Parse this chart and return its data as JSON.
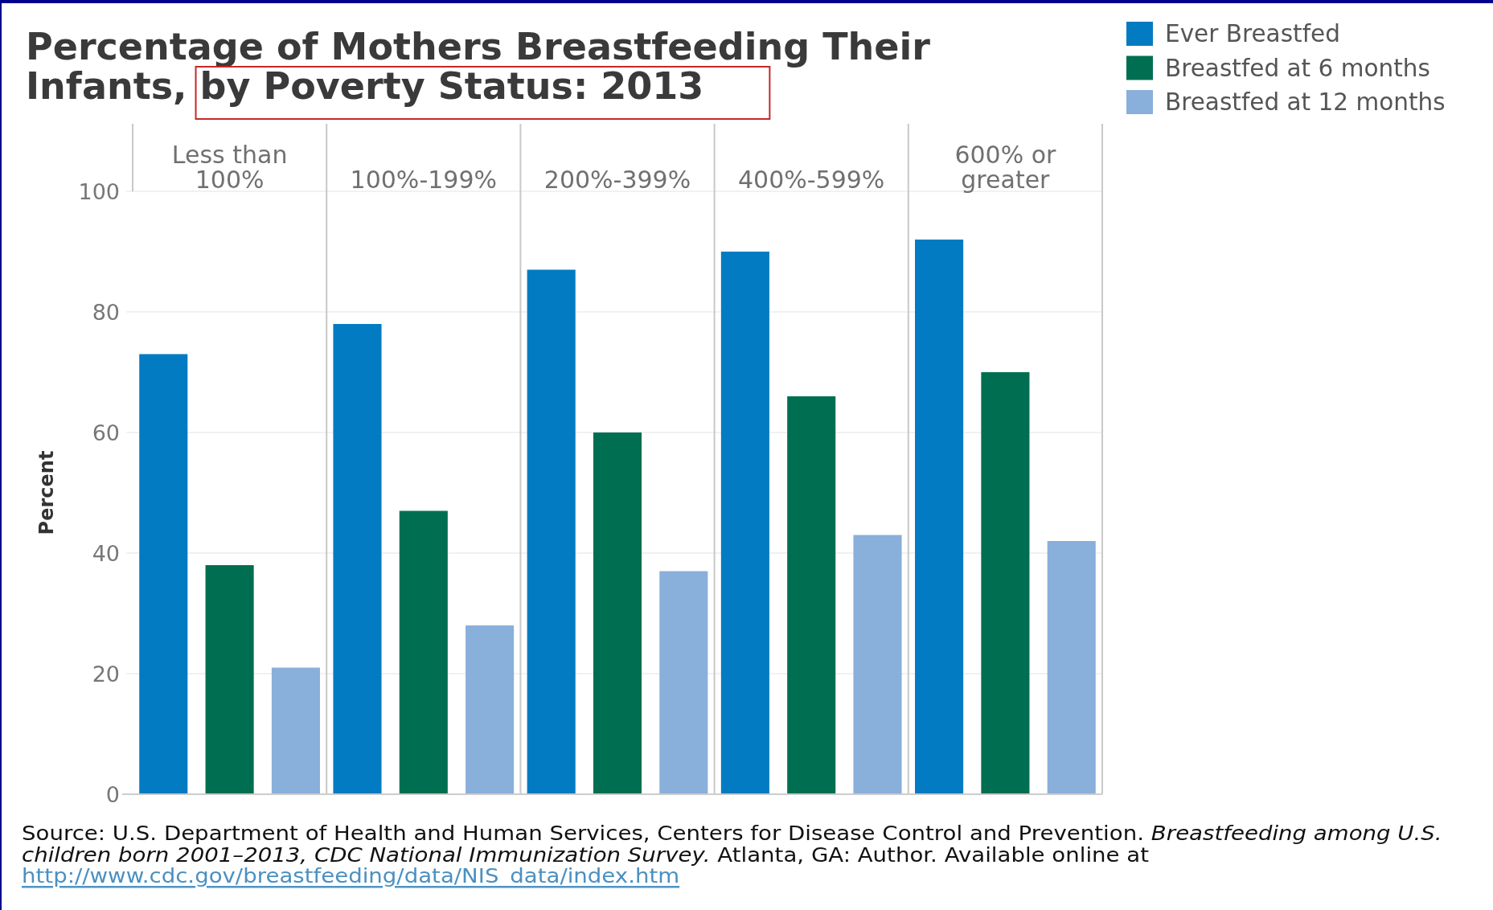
{
  "chart_data": {
    "type": "bar",
    "title": "Percentage of Mothers Breastfeeding Their Infants, by Poverty Status: 2013",
    "ylabel": "Percent",
    "categories": [
      "Less than 100%",
      "100%-199%",
      "200%-399%",
      "400%-599%",
      "600% or greater"
    ],
    "series": [
      {
        "name": "Ever Breastfed",
        "color": "#027bc2",
        "values": [
          73,
          78,
          87,
          90,
          92
        ]
      },
      {
        "name": "Breastfed at 6 months",
        "color": "#006f51",
        "values": [
          38,
          47,
          60,
          66,
          70
        ]
      },
      {
        "name": "Breastfed at 12 months",
        "color": "#89afdb",
        "values": [
          21,
          28,
          37,
          43,
          42
        ]
      }
    ],
    "ylim": [
      0,
      100
    ],
    "yticks": [
      0,
      20,
      40,
      60,
      80,
      100
    ],
    "grid": "y",
    "legend": "top right",
    "annotations": [
      "Source: U.S. Department of Health and Human Services, Centers for Disease Control and Prevention.",
      "Breastfeeding among U.S.",
      "children born 2001–2013, CDC National Immunization Survey.",
      "Atlanta, GA: Author. Available online at",
      "http://www.cdc.gov/breastfeeding/data/NIS_data/index.htm"
    ]
  }
}
